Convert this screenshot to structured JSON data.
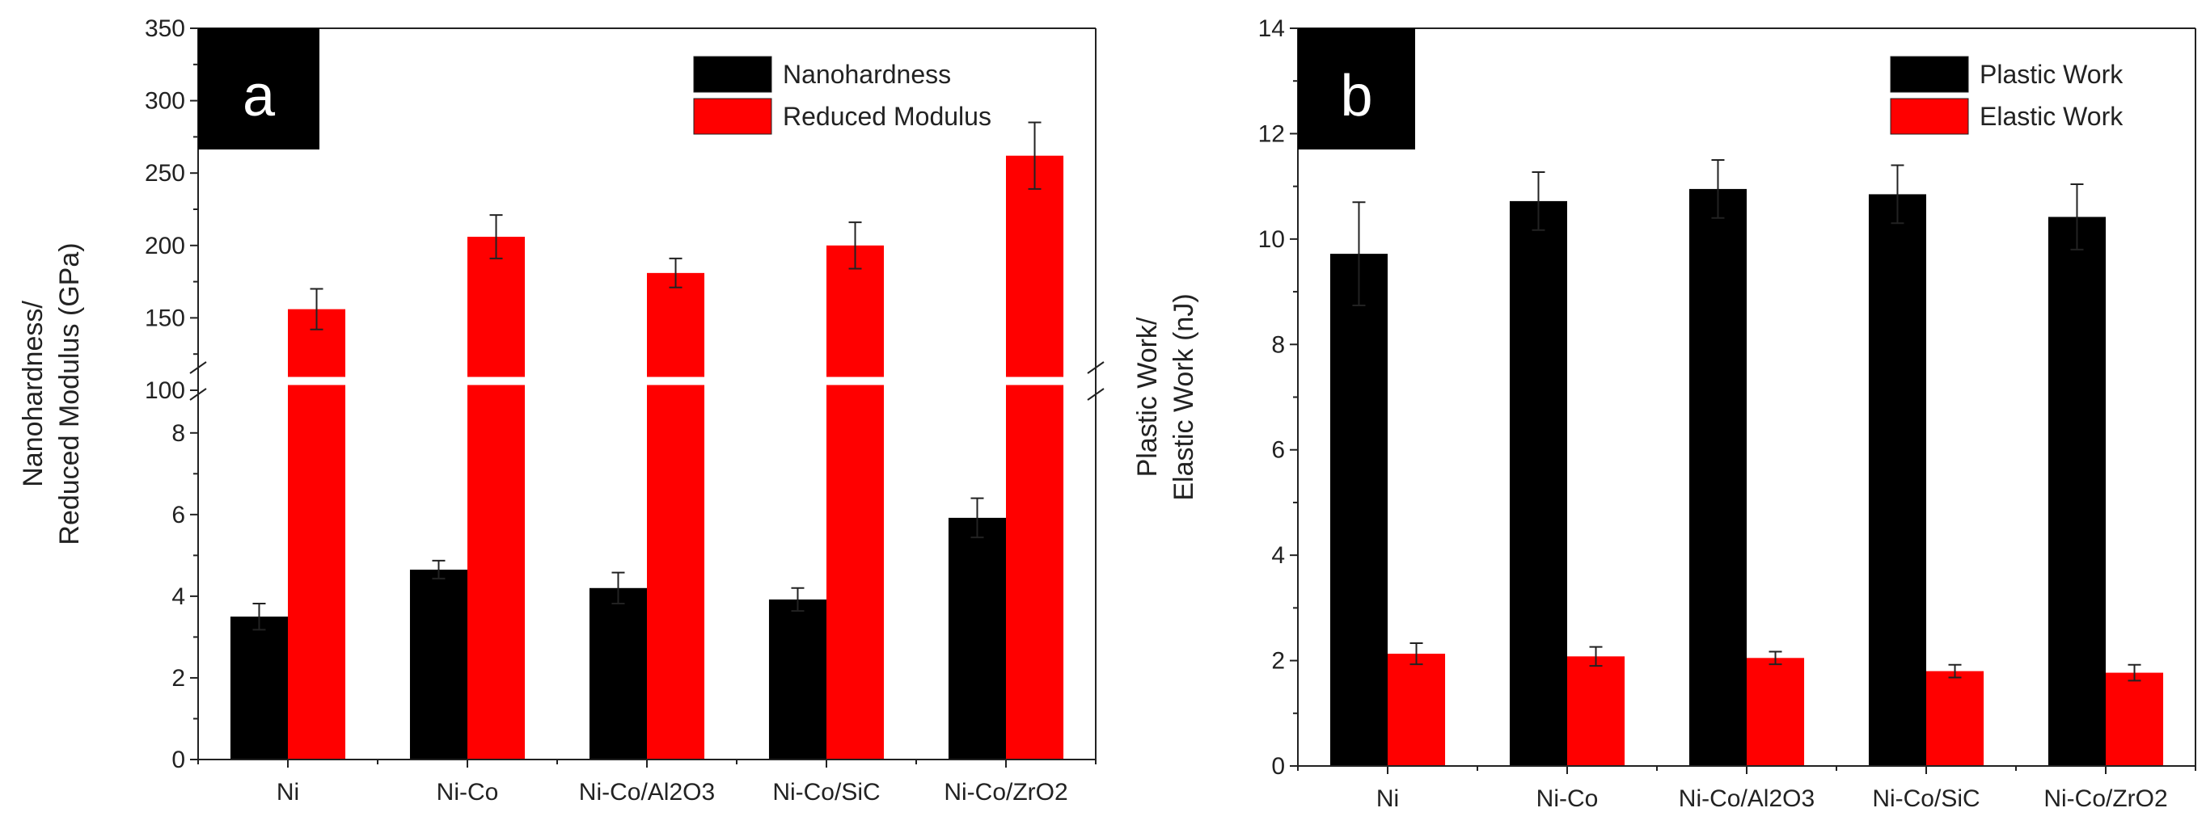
{
  "chart_data": [
    {
      "type": "bar",
      "panel_label": "a",
      "categories": [
        "Ni",
        "Ni-Co",
        "Ni-Co/Al2O3",
        "Ni-Co/SiC",
        "Ni-Co/ZrO2"
      ],
      "ylabel_line1": "Nanohardness/",
      "ylabel_line2": "Reduced Modulus (GPa)",
      "xlabel": "",
      "y_axis_break": true,
      "ylim_lower": [
        0,
        9.5
      ],
      "ylim_upper": [
        100,
        350
      ],
      "yticks_lower": [
        0,
        2,
        4,
        6,
        8
      ],
      "yticks_upper": [
        100,
        150,
        200,
        250,
        300,
        350
      ],
      "legend_position": "top-right",
      "series": [
        {
          "name": "Nanohardness",
          "color": "#000000",
          "values": [
            3.5,
            4.65,
            4.2,
            3.92,
            5.92
          ],
          "errors": [
            0.32,
            0.22,
            0.38,
            0.28,
            0.48
          ]
        },
        {
          "name": "Reduced Modulus",
          "color": "#ff0000",
          "values": [
            156,
            206,
            181,
            200,
            262
          ],
          "errors": [
            14,
            15,
            10,
            16,
            23
          ]
        }
      ]
    },
    {
      "type": "bar",
      "panel_label": "b",
      "categories": [
        "Ni",
        "Ni-Co",
        "Ni-Co/Al2O3",
        "Ni-Co/SiC",
        "Ni-Co/ZrO2"
      ],
      "ylabel_line1": "Plastic Work/",
      "ylabel_line2": "Elastic Work (nJ)",
      "xlabel": "",
      "ylim": [
        0,
        14
      ],
      "yticks": [
        0,
        2,
        4,
        6,
        8,
        10,
        12,
        14
      ],
      "legend_position": "top-right",
      "series": [
        {
          "name": "Plastic Work",
          "color": "#000000",
          "values": [
            9.72,
            10.72,
            10.95,
            10.85,
            10.42
          ],
          "errors": [
            0.98,
            0.55,
            0.55,
            0.55,
            0.62
          ]
        },
        {
          "name": "Elastic Work",
          "color": "#ff0000",
          "values": [
            2.13,
            2.08,
            2.05,
            1.8,
            1.77
          ],
          "errors": [
            0.2,
            0.18,
            0.12,
            0.12,
            0.15
          ]
        }
      ]
    }
  ]
}
